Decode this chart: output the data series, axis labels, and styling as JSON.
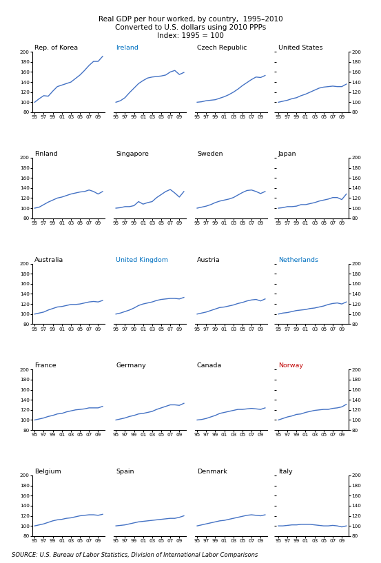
{
  "title_line1": "Real GDP per hour worked, by country,  1995–2010",
  "title_line2": "Converted to U.S. dollars using 2010 PPPs",
  "title_line3": "Index: 1995 = 100",
  "source": "SOURCE: U.S. Bureau of Labor Statistics, Division of International Labor Comparisons",
  "ylim": [
    80,
    200
  ],
  "yticks": [
    80,
    100,
    120,
    140,
    160,
    180,
    200
  ],
  "countries": [
    "Rep. of Korea",
    "Ireland",
    "Czech Republic",
    "United States",
    "Finland",
    "Singapore",
    "Sweden",
    "Japan",
    "Australia",
    "United Kingdom",
    "Austria",
    "Netherlands",
    "France",
    "Germany",
    "Canada",
    "Norway",
    "Belgium",
    "Spain",
    "Denmark",
    "Italy"
  ],
  "title_colors": {
    "Rep. of Korea": "#000000",
    "Ireland": "#0070C0",
    "Czech Republic": "#000000",
    "United States": "#000000",
    "Finland": "#000000",
    "Singapore": "#000000",
    "Sweden": "#000000",
    "Japan": "#000000",
    "Australia": "#000000",
    "United Kingdom": "#0070C0",
    "Austria": "#000000",
    "Netherlands": "#0070C0",
    "France": "#000000",
    "Germany": "#000000",
    "Canada": "#000000",
    "Norway": "#C00000",
    "Belgium": "#000000",
    "Spain": "#000000",
    "Denmark": "#000000",
    "Italy": "#000000"
  },
  "data": {
    "Rep. of Korea": [
      100,
      107,
      113,
      112,
      122,
      131,
      134,
      137,
      140,
      147,
      154,
      163,
      173,
      181,
      181,
      191
    ],
    "Ireland": [
      100,
      103,
      109,
      119,
      128,
      137,
      143,
      148,
      150,
      151,
      152,
      154,
      160,
      163,
      155,
      159
    ],
    "Czech Republic": [
      100,
      101,
      103,
      104,
      105,
      108,
      111,
      115,
      120,
      126,
      133,
      139,
      145,
      150,
      149,
      153
    ],
    "United States": [
      100,
      102,
      104,
      107,
      109,
      113,
      116,
      120,
      124,
      128,
      130,
      131,
      132,
      131,
      131,
      136
    ],
    "Finland": [
      100,
      102,
      107,
      112,
      116,
      120,
      122,
      125,
      128,
      130,
      132,
      133,
      136,
      133,
      128,
      133
    ],
    "Singapore": [
      100,
      101,
      103,
      103,
      105,
      113,
      108,
      111,
      113,
      121,
      127,
      133,
      137,
      130,
      122,
      133
    ],
    "Sweden": [
      100,
      102,
      104,
      107,
      111,
      114,
      116,
      118,
      121,
      126,
      131,
      135,
      136,
      133,
      129,
      133
    ],
    "Japan": [
      100,
      101,
      103,
      103,
      104,
      107,
      107,
      109,
      111,
      114,
      116,
      118,
      121,
      121,
      117,
      128
    ],
    "Australia": [
      100,
      102,
      104,
      108,
      111,
      114,
      115,
      117,
      119,
      119,
      120,
      122,
      124,
      125,
      124,
      127
    ],
    "United Kingdom": [
      100,
      102,
      105,
      108,
      112,
      117,
      120,
      122,
      124,
      127,
      129,
      130,
      131,
      131,
      130,
      133
    ],
    "Austria": [
      100,
      102,
      104,
      107,
      110,
      113,
      114,
      116,
      118,
      121,
      123,
      126,
      128,
      129,
      126,
      130
    ],
    "Netherlands": [
      100,
      102,
      103,
      105,
      107,
      108,
      109,
      111,
      112,
      114,
      116,
      119,
      121,
      122,
      120,
      124
    ],
    "France": [
      100,
      102,
      104,
      107,
      109,
      112,
      113,
      116,
      118,
      120,
      121,
      122,
      124,
      124,
      124,
      127
    ],
    "Germany": [
      100,
      102,
      104,
      107,
      109,
      112,
      113,
      115,
      117,
      121,
      124,
      127,
      130,
      130,
      129,
      133
    ],
    "Canada": [
      100,
      101,
      103,
      106,
      109,
      113,
      115,
      117,
      119,
      121,
      121,
      122,
      123,
      122,
      121,
      124
    ],
    "Norway": [
      100,
      103,
      106,
      108,
      111,
      112,
      115,
      117,
      119,
      120,
      121,
      121,
      123,
      124,
      126,
      131
    ],
    "Belgium": [
      100,
      102,
      104,
      107,
      110,
      112,
      113,
      115,
      116,
      118,
      120,
      121,
      122,
      122,
      121,
      123
    ],
    "Spain": [
      100,
      101,
      102,
      104,
      106,
      108,
      109,
      110,
      111,
      112,
      113,
      114,
      115,
      115,
      117,
      120
    ],
    "Denmark": [
      100,
      102,
      104,
      106,
      108,
      110,
      111,
      113,
      115,
      117,
      119,
      121,
      122,
      121,
      120,
      122
    ],
    "Italy": [
      100,
      100,
      101,
      102,
      102,
      103,
      103,
      103,
      102,
      101,
      100,
      100,
      101,
      100,
      98,
      100
    ]
  },
  "line_color": "#4472C4",
  "line_width": 1.0
}
